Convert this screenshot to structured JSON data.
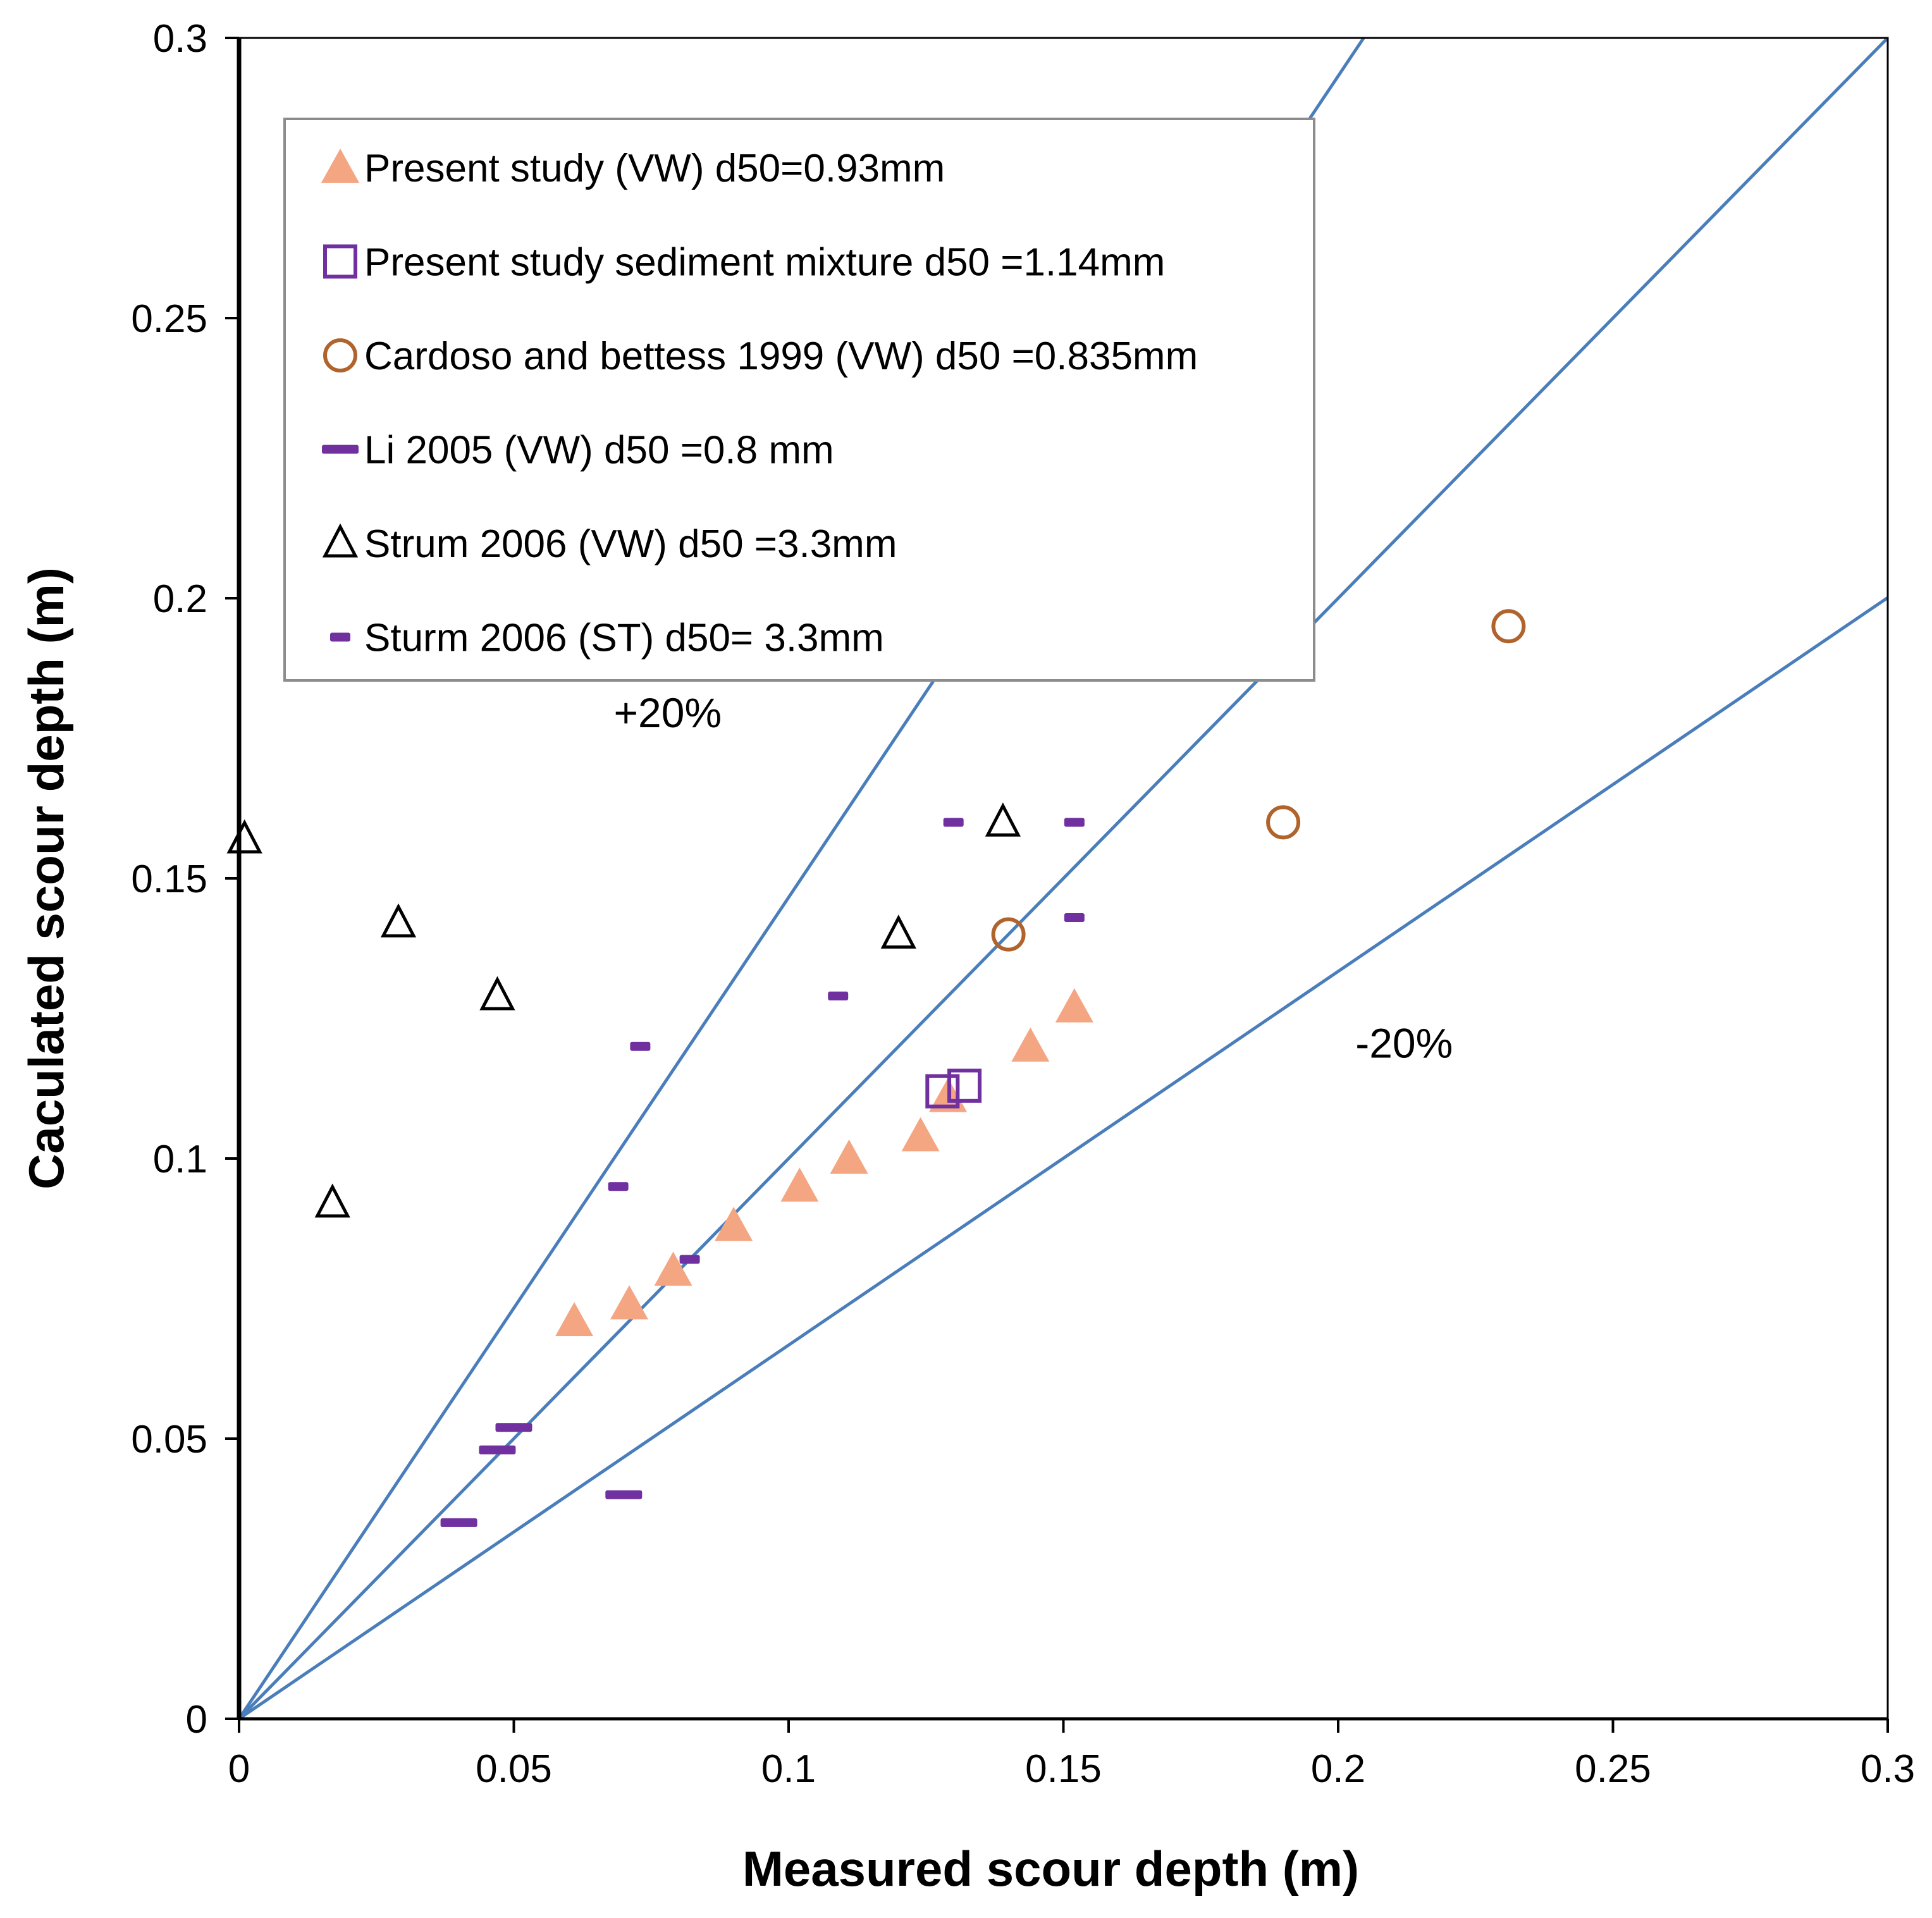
{
  "chart_data": {
    "type": "scatter",
    "title": "",
    "xlabel": "Measured scour depth (m)",
    "ylabel": "Caculated scour depth (m)",
    "xlim": [
      0,
      0.3
    ],
    "ylim": [
      0,
      0.3
    ],
    "xticks": [
      "0",
      "0.05",
      "0.1",
      "0.15",
      "0.2",
      "0.25",
      "0.3"
    ],
    "yticks": [
      "0",
      "0.05",
      "0.1",
      "0.15",
      "0.2",
      "0.25",
      "0.3"
    ],
    "grid": false,
    "legend_position": "top-left",
    "reference_lines": [
      {
        "name": "+20%",
        "slope": 1.466
      },
      {
        "name": "1:1",
        "slope": 1.0
      },
      {
        "name": "-20%",
        "slope": 0.667
      }
    ],
    "annotations": [
      {
        "text": "+20%",
        "x": 0.078,
        "y": 0.177
      },
      {
        "text": "-20%",
        "x": 0.212,
        "y": 0.118
      }
    ],
    "series": [
      {
        "name": "Present study (VW) d50=0.93mm",
        "marker": "filled-triangle",
        "color": "#F4A582",
        "points": [
          [
            0.061,
            0.071
          ],
          [
            0.071,
            0.074
          ],
          [
            0.079,
            0.08
          ],
          [
            0.09,
            0.088
          ],
          [
            0.102,
            0.095
          ],
          [
            0.111,
            0.1
          ],
          [
            0.124,
            0.104
          ],
          [
            0.129,
            0.111
          ],
          [
            0.144,
            0.12
          ],
          [
            0.152,
            0.127
          ]
        ]
      },
      {
        "name": "Present study sediment mixture d50 =1.14mm",
        "marker": "open-square",
        "color": "#7030A0",
        "points": [
          [
            0.128,
            0.112
          ],
          [
            0.132,
            0.113
          ]
        ]
      },
      {
        "name": "Cardoso and bettess 1999 (VW) d50 =0.835mm",
        "marker": "open-circle",
        "color": "#B0642C",
        "points": [
          [
            0.14,
            0.14
          ],
          [
            0.19,
            0.16
          ],
          [
            0.231,
            0.195
          ]
        ]
      },
      {
        "name": " Li 2005 (VW) d50 =0.8 mm",
        "marker": "dash-long",
        "color": "#7030A0",
        "points": [
          [
            0.04,
            0.035
          ],
          [
            0.047,
            0.048
          ],
          [
            0.05,
            0.052
          ],
          [
            0.07,
            0.04
          ]
        ]
      },
      {
        "name": "Strum 2006 (VW) d50 =3.3mm",
        "marker": "open-triangle",
        "color": "#000000",
        "points": [
          [
            0.001,
            0.157
          ],
          [
            0.017,
            0.092
          ],
          [
            0.029,
            0.142
          ],
          [
            0.047,
            0.129
          ],
          [
            0.12,
            0.14
          ],
          [
            0.139,
            0.16
          ]
        ]
      },
      {
        "name": "Sturm 2006 (ST) d50= 3.3mm",
        "marker": "dash-short",
        "color": "#7030A0",
        "points": [
          [
            0.069,
            0.095
          ],
          [
            0.073,
            0.12
          ],
          [
            0.082,
            0.082
          ],
          [
            0.109,
            0.129
          ],
          [
            0.13,
            0.16
          ],
          [
            0.152,
            0.16
          ],
          [
            0.152,
            0.143
          ]
        ]
      }
    ]
  }
}
